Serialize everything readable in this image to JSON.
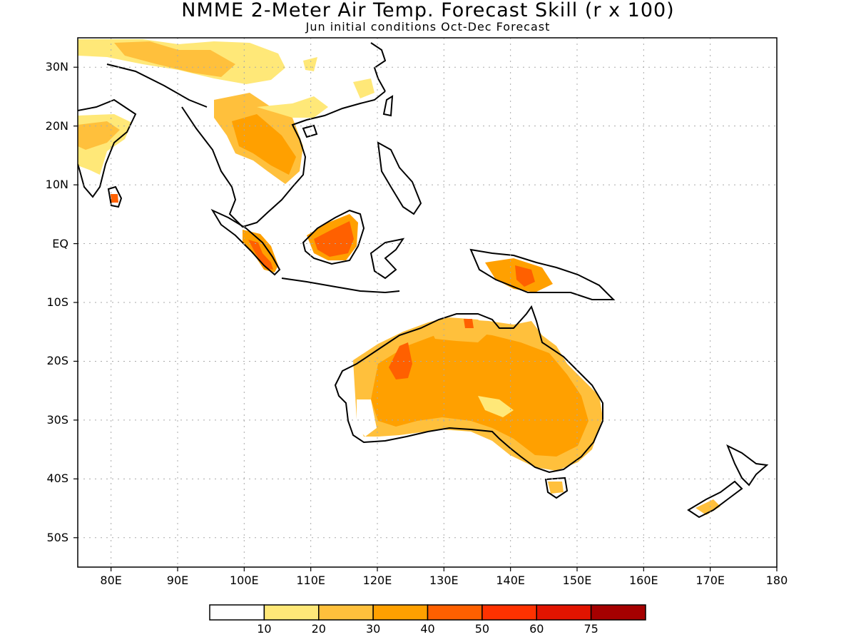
{
  "title": "NMME 2-Meter Air Temp. Forecast Skill (r x 100)",
  "subtitle": "Jun initial conditions  Oct-Dec Forecast",
  "map": {
    "lon_range": [
      75,
      180
    ],
    "lat_range": [
      -55,
      35
    ],
    "lat_ticks": [
      {
        "value": 30,
        "label": "30N"
      },
      {
        "value": 20,
        "label": "20N"
      },
      {
        "value": 10,
        "label": "10N"
      },
      {
        "value": 0,
        "label": "EQ"
      },
      {
        "value": -10,
        "label": "10S"
      },
      {
        "value": -20,
        "label": "20S"
      },
      {
        "value": -30,
        "label": "30S"
      },
      {
        "value": -40,
        "label": "40S"
      },
      {
        "value": -50,
        "label": "50S"
      }
    ],
    "lon_ticks": [
      {
        "value": 80,
        "label": "80E"
      },
      {
        "value": 90,
        "label": "90E"
      },
      {
        "value": 100,
        "label": "100E"
      },
      {
        "value": 110,
        "label": "110E"
      },
      {
        "value": 120,
        "label": "120E"
      },
      {
        "value": 130,
        "label": "130E"
      },
      {
        "value": 140,
        "label": "140E"
      },
      {
        "value": 150,
        "label": "150E"
      },
      {
        "value": 160,
        "label": "160E"
      },
      {
        "value": 170,
        "label": "170E"
      },
      {
        "value": 180,
        "label": "180"
      }
    ],
    "grid": true
  },
  "colorbar": {
    "colors": [
      "#ffffff",
      "#ffe878",
      "#ffc03c",
      "#ffa000",
      "#ff6000",
      "#ff3200",
      "#e11400",
      "#a50000"
    ],
    "labels": [
      "10",
      "20",
      "30",
      "40",
      "50",
      "60",
      "75"
    ]
  }
}
